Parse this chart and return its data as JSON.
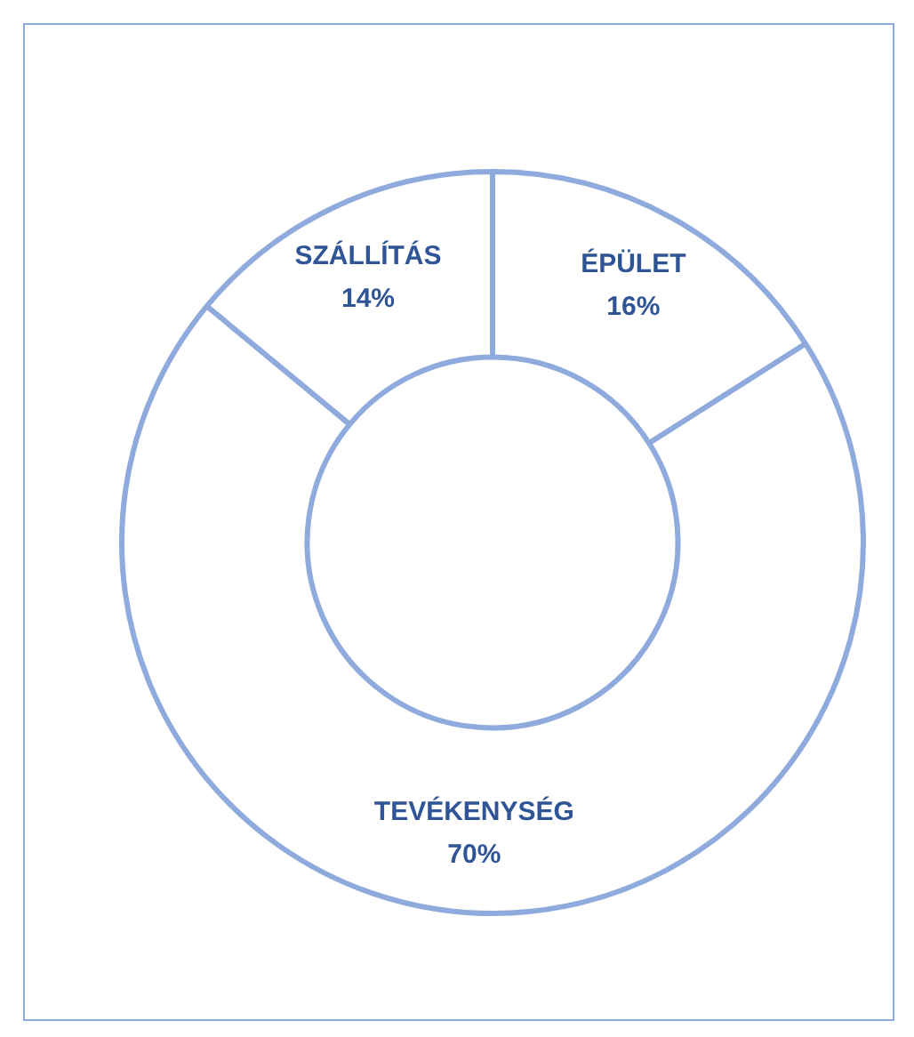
{
  "chart_data": {
    "type": "donut",
    "categories": [
      "ÉPÜLET",
      "TEVÉKENYSÉG",
      "SZÁLLÍTÁS"
    ],
    "values": [
      16,
      70,
      14
    ],
    "colors": [
      "#ffffff",
      "#ffffff",
      "#ffffff"
    ],
    "value_labels": [
      "16%",
      "70%",
      "14%"
    ],
    "legend": false
  }
}
